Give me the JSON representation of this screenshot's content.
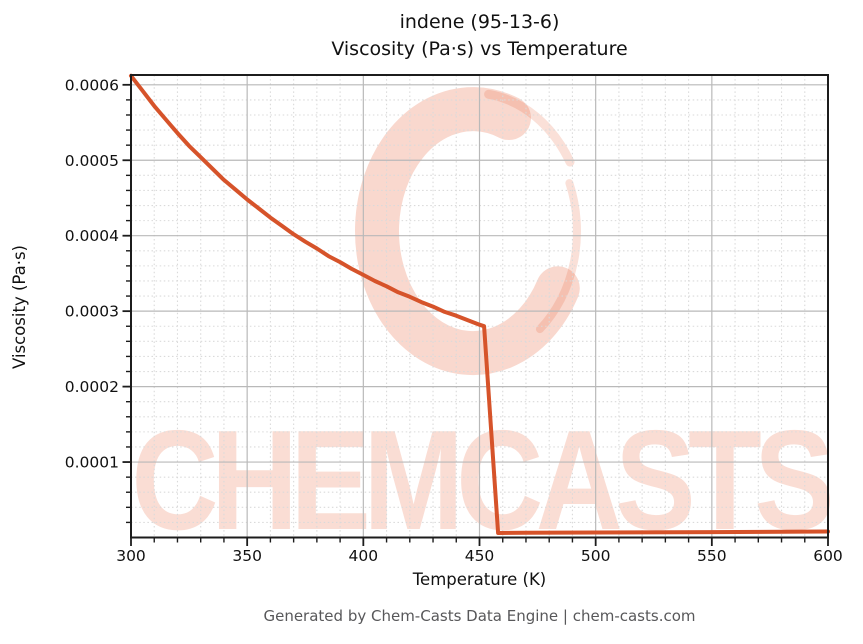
{
  "title": {
    "line1": "indene (95-13-6)",
    "line2": "Viscosity (Pa·s) vs Temperature"
  },
  "footer": "Generated by Chem-Casts Data Engine | chem-casts.com",
  "watermark": {
    "text": "CHEMCASTS",
    "color": "#e8643a"
  },
  "chart_data": {
    "type": "line",
    "title": "indene (95-13-6) — Viscosity (Pa·s) vs Temperature",
    "xlabel": "Temperature (K)",
    "ylabel": "Viscosity (Pa·s)",
    "xlim": [
      300,
      600
    ],
    "ylim": [
      0,
      0.000613
    ],
    "x_ticks": [
      300,
      350,
      400,
      450,
      500,
      550,
      600
    ],
    "x_tick_labels": [
      "300",
      "350",
      "400",
      "450",
      "500",
      "550",
      "600"
    ],
    "x_minor_step": 10,
    "y_ticks": [
      0.0001,
      0.0002,
      0.0003,
      0.0004,
      0.0005,
      0.0006
    ],
    "y_tick_labels": [
      "0.0001",
      "0.0002",
      "0.0003",
      "0.0004",
      "0.0005",
      "0.0006"
    ],
    "y_minor_step": 2e-05,
    "grid": true,
    "legend": "none",
    "line_color": "#d6532a",
    "line_width": 4,
    "grid_major_color": "#b9b9b9",
    "grid_minor_color": "#dadada",
    "spine_color": "#1c1c1c",
    "series": [
      {
        "name": "viscosity",
        "points": [
          [
            300,
            0.000612
          ],
          [
            305,
            0.000592
          ],
          [
            310,
            0.000572
          ],
          [
            315,
            0.000554
          ],
          [
            320,
            0.000536
          ],
          [
            325,
            0.000519
          ],
          [
            330,
            0.000504
          ],
          [
            335,
            0.000489
          ],
          [
            340,
            0.000474
          ],
          [
            345,
            0.000461
          ],
          [
            350,
            0.000448
          ],
          [
            355,
            0.000436
          ],
          [
            360,
            0.000424
          ],
          [
            365,
            0.000413
          ],
          [
            370,
            0.000402
          ],
          [
            375,
            0.000392
          ],
          [
            380,
            0.000383
          ],
          [
            385,
            0.000373
          ],
          [
            390,
            0.000365
          ],
          [
            395,
            0.000356
          ],
          [
            400,
            0.000348
          ],
          [
            405,
            0.00034
          ],
          [
            410,
            0.000333
          ],
          [
            415,
            0.000325
          ],
          [
            420,
            0.000319
          ],
          [
            425,
            0.000312
          ],
          [
            430,
            0.000306
          ],
          [
            435,
            0.000299
          ],
          [
            440,
            0.000294
          ],
          [
            445,
            0.000288
          ],
          [
            450,
            0.000282
          ],
          [
            452,
            0.00028
          ],
          [
            458,
            6e-06
          ],
          [
            470,
            6.2e-06
          ],
          [
            500,
            6.6e-06
          ],
          [
            550,
            7.2e-06
          ],
          [
            600,
            8e-06
          ]
        ]
      }
    ],
    "annotations": {
      "phase_change_drop_at_K": 455
    }
  }
}
